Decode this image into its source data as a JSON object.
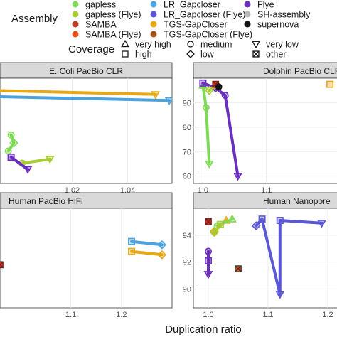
{
  "legend": {
    "assembly_title": "Assembly",
    "coverage_title": "Coverage",
    "assembly_items": [
      {
        "label": "gapless",
        "color": "#7ed957"
      },
      {
        "label": "LR_Gapcloser",
        "color": "#4aa3df"
      },
      {
        "label": "Flye",
        "color": "#6a2fbf"
      },
      {
        "label": "gapless (Flye)",
        "color": "#a8cc33"
      },
      {
        "label": "LR_Gapcloser (Flye)",
        "color": "#5b57d6"
      },
      {
        "label": "SH-assembly",
        "color": "#b8b8b8"
      },
      {
        "label": "SAMBA",
        "color": "#c0392b"
      },
      {
        "label": "TGS-GapCloser",
        "color": "#e6a817"
      },
      {
        "label": "supernova",
        "color": "#111111"
      },
      {
        "label": "SAMBA (Flye)",
        "color": "#e8501c"
      },
      {
        "label": "TGS-GapCloser (Flye)",
        "color": "#a0521d"
      }
    ],
    "coverage_items": [
      {
        "label": "very high",
        "shape": "triangle-up"
      },
      {
        "label": "medium",
        "shape": "circle"
      },
      {
        "label": "very low",
        "shape": "triangle-down"
      },
      {
        "label": "high",
        "shape": "square"
      },
      {
        "label": "low",
        "shape": "diamond"
      },
      {
        "label": "other",
        "shape": "boxed-x"
      }
    ]
  },
  "chart_data": [
    {
      "type": "line",
      "title": "E. Coli PacBio CLR",
      "xlabel": "Duplication ratio",
      "x_ticks": [
        "1.02",
        "1.04"
      ],
      "y_ticks": [],
      "series": [
        {
          "name": "TGS-GapCloser",
          "color": "#e6a817",
          "points": [
            [
              0.99,
              99.2,
              "square"
            ],
            [
              1.05,
              99.0,
              "triangle-down"
            ]
          ]
        },
        {
          "name": "LR_Gapcloser",
          "color": "#4aa3df",
          "points": [
            [
              0.99,
              98.9,
              "square"
            ],
            [
              1.055,
              98.7,
              "triangle-down"
            ]
          ]
        },
        {
          "name": "gapless",
          "color": "#7ed957",
          "points": [
            [
              0.998,
              97.0,
              "circle"
            ],
            [
              0.999,
              96.6,
              "diamond"
            ],
            [
              0.997,
              96.2,
              "circle"
            ]
          ]
        },
        {
          "name": "gapless (Flye)",
          "color": "#a8cc33",
          "points": [
            [
              1.002,
              95.6,
              "circle"
            ],
            [
              1.012,
              95.8,
              "triangle-down"
            ]
          ]
        },
        {
          "name": "Flye",
          "color": "#6a2fbf",
          "points": [
            [
              0.998,
              95.9,
              "square"
            ],
            [
              1.004,
              95.3,
              "triangle-down"
            ]
          ]
        }
      ]
    },
    {
      "type": "line",
      "title": "Dolphin PacBio CLR",
      "xlabel": "Duplication ratio",
      "x_ticks": [
        "1.0",
        "1.1"
      ],
      "y_ticks": [
        "60",
        "70",
        "80",
        "90"
      ],
      "series": [
        {
          "name": "gapless",
          "color": "#7ed957",
          "points": [
            [
              1.0,
              97,
              "triangle-up"
            ],
            [
              1.005,
              88,
              "circle"
            ],
            [
              1.01,
              65,
              "triangle-down"
            ]
          ]
        },
        {
          "name": "Flye",
          "color": "#6a2fbf",
          "points": [
            [
              1.0,
              98,
              "square"
            ],
            [
              1.02,
              96,
              "diamond"
            ],
            [
              1.035,
              93,
              "circle"
            ],
            [
              1.055,
              60,
              "triangle-down"
            ]
          ]
        },
        {
          "name": "gapless (Flye)",
          "color": "#a8cc33",
          "points": [
            [
              1.02,
              97,
              "triangle-up"
            ],
            [
              1.01,
              95,
              "diamond"
            ]
          ]
        },
        {
          "name": "SAMBA",
          "color": "#c0392b",
          "points": [
            [
              1.02,
              97.5,
              "boxed-x"
            ]
          ]
        },
        {
          "name": "supernova",
          "color": "#111111",
          "points": [
            [
              1.025,
              96.5,
              "circle"
            ]
          ]
        },
        {
          "name": "TGS-GapCloser",
          "color": "#e6a817",
          "points": [
            [
              1.2,
              97.5,
              "square"
            ]
          ]
        }
      ]
    },
    {
      "type": "line",
      "title": "Human PacBio HiFi",
      "xlabel": "Duplication ratio",
      "x_ticks": [
        "1.1",
        "1.2"
      ],
      "y_ticks": [],
      "series": [
        {
          "name": "SAMBA",
          "color": "#c0392b",
          "points": [
            [
              0.96,
              92.5,
              "boxed-x"
            ]
          ]
        },
        {
          "name": "LR_Gapcloser",
          "color": "#4aa3df",
          "points": [
            [
              1.22,
              93.2,
              "square"
            ],
            [
              1.28,
              93.1,
              "diamond"
            ]
          ]
        },
        {
          "name": "TGS-GapCloser",
          "color": "#e6a817",
          "points": [
            [
              1.22,
              92.9,
              "square"
            ],
            [
              1.28,
              92.8,
              "diamond"
            ]
          ]
        }
      ]
    },
    {
      "type": "line",
      "title": "Human Nanopore",
      "xlabel": "Duplication ratio",
      "x_ticks": [
        "1.0",
        "1.1",
        "1.2"
      ],
      "y_ticks": [
        "90",
        "92",
        "94"
      ],
      "series": [
        {
          "name": "SAMBA",
          "color": "#c0392b",
          "points": [
            [
              1.0,
              95.0,
              "boxed-x"
            ]
          ]
        },
        {
          "name": "TGS-GapCloser",
          "color": "#e6a817",
          "points": [
            [
              1.01,
              94.3,
              "diamond"
            ],
            [
              1.03,
              95.1,
              "triangle-up"
            ]
          ]
        },
        {
          "name": "gapless",
          "color": "#7ed957",
          "points": [
            [
              1.015,
              94.7,
              "circle"
            ],
            [
              1.04,
              95.2,
              "triangle-up"
            ]
          ]
        },
        {
          "name": "gapless (Flye)",
          "color": "#a8cc33",
          "points": [
            [
              1.01,
              94.2,
              "diamond"
            ],
            [
              1.02,
              94.8,
              "square"
            ]
          ]
        },
        {
          "name": "Flye",
          "color": "#6a2fbf",
          "points": [
            [
              1.0,
              92.8,
              "circle"
            ],
            [
              1.0,
              92.1,
              "square"
            ],
            [
              1.0,
              91.1,
              "triangle-down"
            ]
          ]
        },
        {
          "name": "LR_Gapcloser (Flye)",
          "color": "#5b57d6",
          "points": [
            [
              1.08,
              94.7,
              "diamond"
            ],
            [
              1.09,
              95.2,
              "square"
            ],
            [
              1.12,
              89.6,
              "triangle-down"
            ],
            [
              1.12,
              95.1,
              "square"
            ],
            [
              1.19,
              94.9,
              "triangle-down"
            ]
          ]
        },
        {
          "name": "SAMBA (Flye)",
          "color": "#e8501c",
          "points": [
            [
              1.05,
              91.5,
              "boxed-x"
            ]
          ]
        }
      ]
    }
  ]
}
